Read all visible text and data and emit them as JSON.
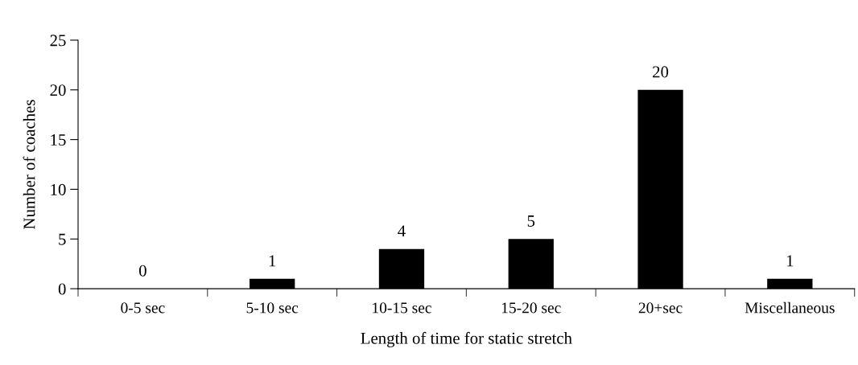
{
  "chart_data": {
    "type": "bar",
    "xlabel": "Length of time for static stretch",
    "ylabel": "Number of coaches",
    "categories": [
      "0-5 sec",
      "5-10 sec",
      "10-15 sec",
      "15-20 sec",
      "20+sec",
      "Miscellaneous"
    ],
    "values": [
      0,
      1,
      4,
      5,
      20,
      1
    ],
    "color": "#000000",
    "ylim": [
      0,
      25
    ],
    "yticks": [
      0,
      5,
      10,
      15,
      20,
      25
    ],
    "grid": false,
    "data_labels": true
  }
}
